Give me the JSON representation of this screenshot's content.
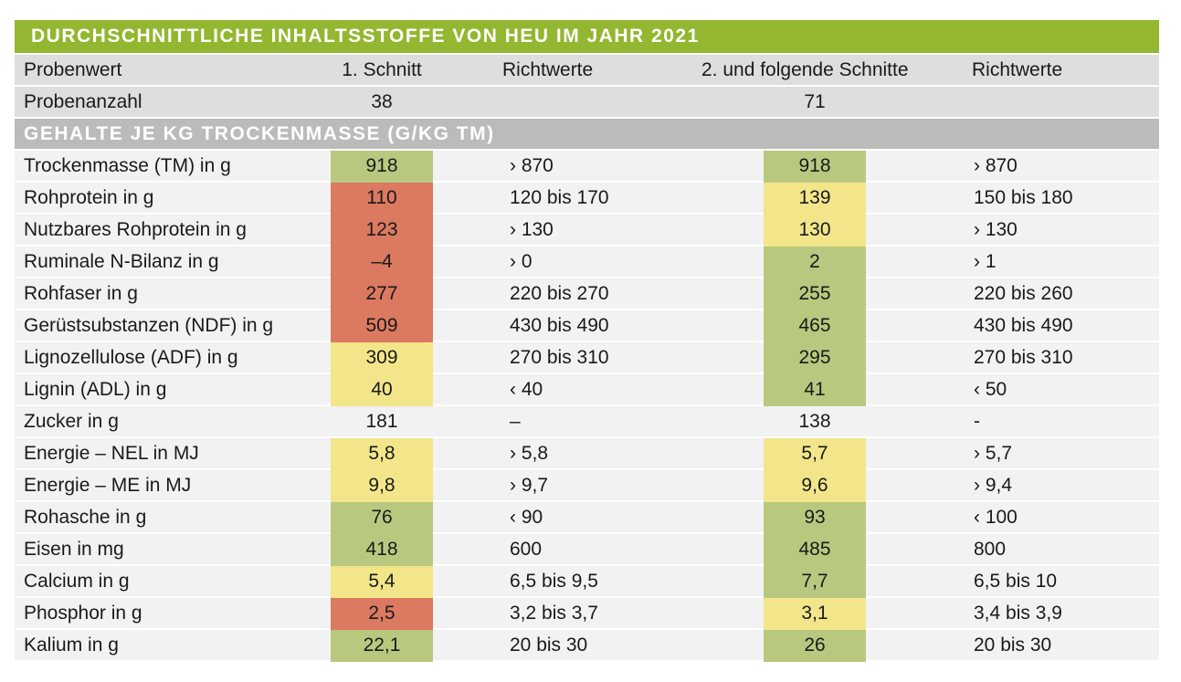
{
  "title": "DURCHSCHNITTLICHE INHALTSSTOFFE VON HEU IM JAHR 2021",
  "header": {
    "col_label": "Probenwert",
    "col_v1": "1. Schnitt",
    "col_r1": "Richtwerte",
    "col_v2": "2. und folgende Schnitte",
    "col_r2": "Richtwerte"
  },
  "sample_count": {
    "label": "Probenanzahl",
    "v1": "38",
    "v2": "71"
  },
  "section_title": "GEHALTE JE KG TROCKENMASSE (G/KG TM)",
  "status_colors": {
    "green": "#b8c97f",
    "yellow": "#f3e58a",
    "red": "#db7961",
    "none": "transparent"
  },
  "rows": [
    {
      "label": "Trockenmasse (TM) in g",
      "v1": "918",
      "s1": "green",
      "r1": "› 870",
      "v2": "918",
      "s2": "green",
      "r2": "› 870"
    },
    {
      "label": "Rohprotein in g",
      "v1": "110",
      "s1": "red",
      "r1": "120 bis 170",
      "v2": "139",
      "s2": "yellow",
      "r2": "150 bis 180"
    },
    {
      "label": "Nutzbares Rohprotein in g",
      "v1": "123",
      "s1": "red",
      "r1": "› 130",
      "v2": "130",
      "s2": "yellow",
      "r2": "› 130"
    },
    {
      "label": "Ruminale N-Bilanz in g",
      "v1": "–4",
      "s1": "red",
      "r1": "› 0",
      "v2": "2",
      "s2": "green",
      "r2": "› 1"
    },
    {
      "label": "Rohfaser in g",
      "v1": "277",
      "s1": "red",
      "r1": "220 bis 270",
      "v2": "255",
      "s2": "green",
      "r2": "220 bis 260"
    },
    {
      "label": "Gerüstsubstanzen (NDF) in g",
      "v1": "509",
      "s1": "red",
      "r1": "430 bis 490",
      "v2": "465",
      "s2": "green",
      "r2": "430 bis 490"
    },
    {
      "label": "Lignozellulose (ADF) in g",
      "v1": "309",
      "s1": "yellow",
      "r1": "270 bis 310",
      "v2": "295",
      "s2": "green",
      "r2": "270 bis 310"
    },
    {
      "label": "Lignin (ADL) in g",
      "v1": "40",
      "s1": "yellow",
      "r1": "‹ 40",
      "v2": "41",
      "s2": "green",
      "r2": "‹ 50"
    },
    {
      "label": "Zucker in g",
      "v1": "181",
      "s1": "none",
      "r1": "–",
      "v2": "138",
      "s2": "none",
      "r2": "-"
    },
    {
      "label": "Energie – NEL in MJ",
      "v1": "5,8",
      "s1": "yellow",
      "r1": "› 5,8",
      "v2": "5,7",
      "s2": "yellow",
      "r2": "› 5,7"
    },
    {
      "label": "Energie – ME in MJ",
      "v1": "9,8",
      "s1": "yellow",
      "r1": "› 9,7",
      "v2": "9,6",
      "s2": "yellow",
      "r2": "› 9,4"
    },
    {
      "label": "Rohasche in g",
      "v1": "76",
      "s1": "green",
      "r1": "‹ 90",
      "v2": "93",
      "s2": "green",
      "r2": "‹ 100"
    },
    {
      "label": "Eisen in mg",
      "v1": "418",
      "s1": "green",
      "r1": "600",
      "v2": "485",
      "s2": "green",
      "r2": "800"
    },
    {
      "label": "Calcium in g",
      "v1": "5,4",
      "s1": "yellow",
      "r1": "6,5 bis 9,5",
      "v2": "7,7",
      "s2": "green",
      "r2": "6,5 bis 10"
    },
    {
      "label": "Phosphor in g",
      "v1": "2,5",
      "s1": "red",
      "r1": "3,2 bis 3,7",
      "v2": "3,1",
      "s2": "yellow",
      "r2": "3,4 bis 3,9"
    },
    {
      "label": "Kalium in g",
      "v1": "22,1",
      "s1": "green",
      "r1": "20 bis 30",
      "v2": "26",
      "s2": "green",
      "r2": "20 bis 30"
    }
  ]
}
